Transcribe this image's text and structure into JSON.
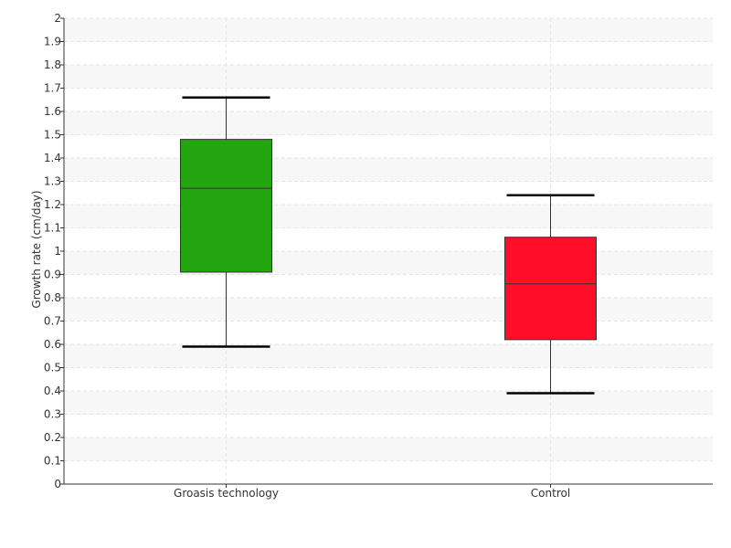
{
  "chart_data": {
    "type": "box",
    "title": "",
    "xlabel": "",
    "ylabel": "Growth rate (cm/day)",
    "ylim": [
      0,
      2
    ],
    "yticks": [
      "0",
      "0.1",
      "0.2",
      "0.3",
      "0.4",
      "0.5",
      "0.6",
      "0.7",
      "0.8",
      "0.9",
      "1",
      "1.1",
      "1.2",
      "1.3",
      "1.4",
      "1.5",
      "1.6",
      "1.7",
      "1.8",
      "1.9",
      "2"
    ],
    "categories": [
      "Groasis technology",
      "Control"
    ],
    "boxes": [
      {
        "category": "Groasis technology",
        "min": 0.59,
        "q1": 0.91,
        "median": 1.27,
        "q3": 1.48,
        "max": 1.66,
        "color": "#22a50f"
      },
      {
        "category": "Control",
        "min": 0.39,
        "q1": 0.62,
        "median": 0.86,
        "q3": 1.06,
        "max": 1.24,
        "color": "#ff0d29"
      }
    ],
    "grid": true,
    "legend": "none"
  }
}
